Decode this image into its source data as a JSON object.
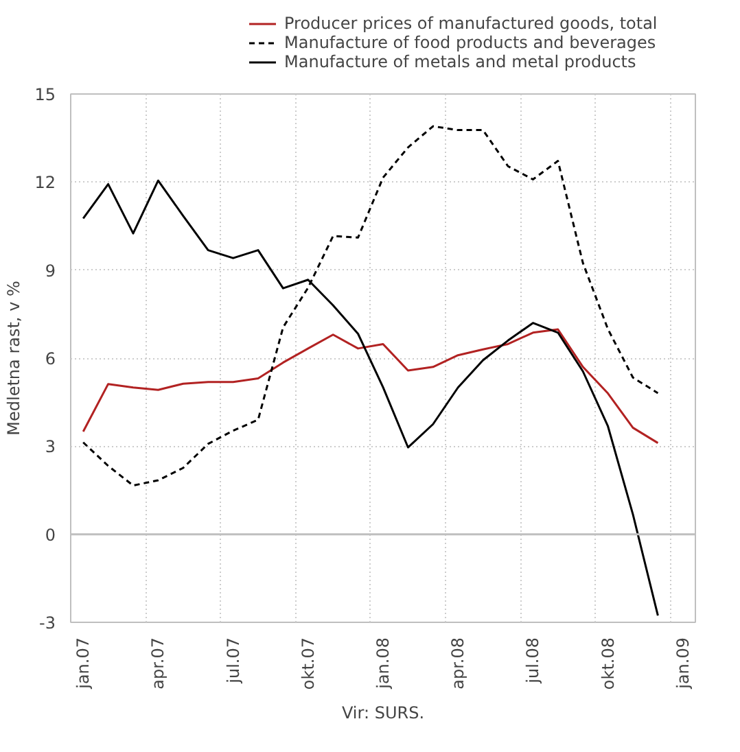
{
  "chart_data": {
    "type": "line",
    "ylabel": "Medletna rast, v %",
    "annotations": [
      "Vir: SURS."
    ],
    "categories": [
      "jan.07",
      null,
      null,
      "apr.07",
      null,
      null,
      "jul.07",
      null,
      null,
      "okt.07",
      null,
      null,
      "jan.08",
      null,
      null,
      "apr.08",
      null,
      null,
      "jul.08",
      null,
      null,
      "okt.08",
      null,
      null,
      "jan.09"
    ],
    "series": [
      {
        "name": "Producer prices of manufactured goods, total",
        "color": "#b22222",
        "line_style": "solid",
        "values": [
          3.5,
          5.12,
          5.0,
          4.92,
          5.13,
          5.19,
          5.19,
          5.31,
          5.85,
          6.33,
          6.8,
          6.33,
          6.48,
          5.58,
          5.7,
          6.1,
          6.3,
          6.48,
          6.87,
          6.98,
          5.7,
          4.8,
          3.63,
          3.11,
          null
        ]
      },
      {
        "name": "Manufacture of food products and beverages",
        "color": "#000000",
        "line_style": "dashed",
        "values": [
          3.13,
          2.33,
          1.66,
          1.84,
          2.26,
          3.08,
          3.53,
          3.9,
          7.05,
          8.4,
          10.16,
          10.11,
          12.15,
          13.18,
          13.9,
          13.77,
          13.77,
          12.54,
          12.09,
          12.72,
          9.24,
          6.99,
          5.34,
          4.81,
          null
        ]
      },
      {
        "name": "Manufacture of metals and metal products",
        "color": "#000000",
        "line_style": "solid",
        "values": [
          10.76,
          11.93,
          10.25,
          12.05,
          10.85,
          9.68,
          9.41,
          9.68,
          8.38,
          8.67,
          7.8,
          6.83,
          5.01,
          2.96,
          3.75,
          5.0,
          5.93,
          6.6,
          7.2,
          6.87,
          5.55,
          3.68,
          0.68,
          -2.77,
          null
        ]
      }
    ],
    "ylim": [
      -3,
      15
    ],
    "yticks": [
      -3,
      0,
      3,
      6,
      9,
      12,
      15
    ],
    "grid": true,
    "legend": "top",
    "ref_lines": [
      {
        "axis": "y",
        "value": 0,
        "color": "#bfbfbf"
      }
    ]
  }
}
